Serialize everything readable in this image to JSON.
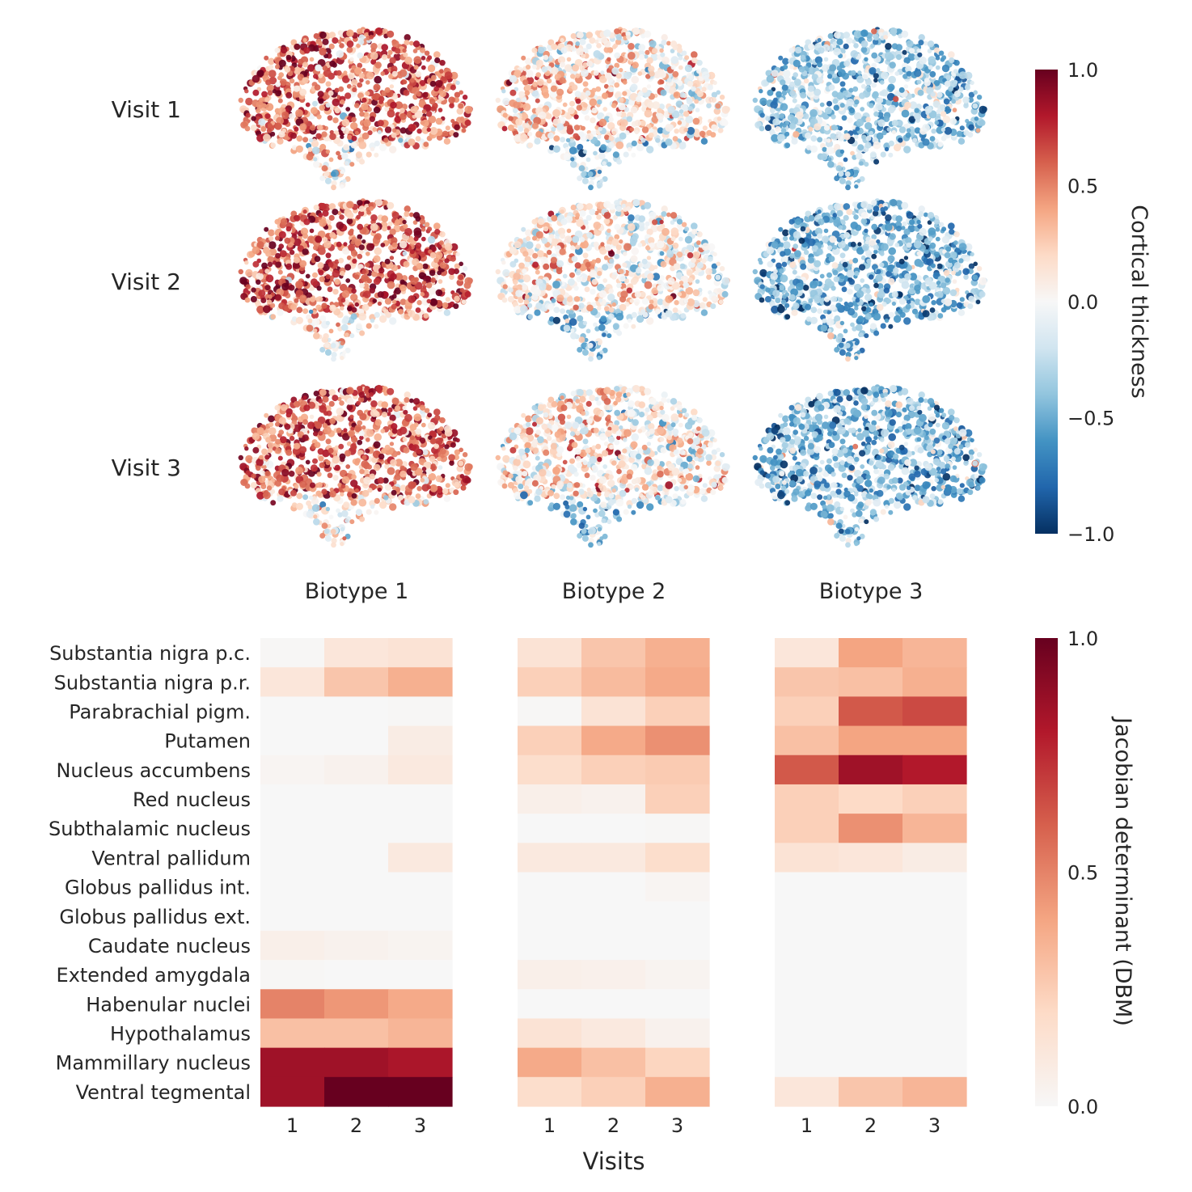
{
  "chart_data": [
    {
      "type": "scatter",
      "description_rows": [
        "Visit 1",
        "Visit 2",
        "Visit 3"
      ],
      "columns": [
        "Biotype 1",
        "Biotype 2",
        "Biotype 3"
      ],
      "colorbar": {
        "label": "Cortical thickness",
        "ticks": [
          "1.0",
          "0.5",
          "0.0",
          "−0.5",
          "−1.0"
        ],
        "range": [
          -1.0,
          1.0
        ],
        "colormap": "RdBu_r"
      },
      "panels": [
        {
          "visit": "Visit 1",
          "biotype": "Biotype 1",
          "mean_value": 0.55
        },
        {
          "visit": "Visit 1",
          "biotype": "Biotype 2",
          "mean_value": 0.2
        },
        {
          "visit": "Visit 1",
          "biotype": "Biotype 3",
          "mean_value": -0.35
        },
        {
          "visit": "Visit 2",
          "biotype": "Biotype 1",
          "mean_value": 0.6
        },
        {
          "visit": "Visit 2",
          "biotype": "Biotype 2",
          "mean_value": 0.12
        },
        {
          "visit": "Visit 2",
          "biotype": "Biotype 3",
          "mean_value": -0.45
        },
        {
          "visit": "Visit 3",
          "biotype": "Biotype 1",
          "mean_value": 0.55
        },
        {
          "visit": "Visit 3",
          "biotype": "Biotype 2",
          "mean_value": 0.15
        },
        {
          "visit": "Visit 3",
          "biotype": "Biotype 3",
          "mean_value": -0.45
        }
      ]
    },
    {
      "type": "heatmap",
      "rows": [
        "Substantia nigra p.c.",
        "Substantia nigra p.r.",
        "Parabrachial pigm.",
        "Putamen",
        "Nucleus accumbens",
        "Red nucleus",
        "Subthalamic nucleus",
        "Ventral pallidum",
        "Globus pallidus int.",
        "Globus pallidus ext.",
        "Caudate nucleus",
        "Extended amygdala",
        "Habenular nuclei",
        "Hypothalamus",
        "Mammillary nucleus",
        "Ventral tegmental"
      ],
      "x_ticks": [
        "1",
        "2",
        "3"
      ],
      "xlabel": "Visits",
      "groups": [
        {
          "name": "Biotype 1",
          "values": [
            [
              0.01,
              0.12,
              0.14
            ],
            [
              0.12,
              0.28,
              0.36
            ],
            [
              0.0,
              0.0,
              0.01
            ],
            [
              0.0,
              0.0,
              0.08
            ],
            [
              0.02,
              0.04,
              0.1
            ],
            [
              0.0,
              0.0,
              0.0
            ],
            [
              0.0,
              0.0,
              0.0
            ],
            [
              0.0,
              0.0,
              0.1
            ],
            [
              0.0,
              0.0,
              0.0
            ],
            [
              0.0,
              0.0,
              0.0
            ],
            [
              0.06,
              0.04,
              0.03
            ],
            [
              0.01,
              0.0,
              0.0
            ],
            [
              0.5,
              0.44,
              0.38
            ],
            [
              0.3,
              0.3,
              0.34
            ],
            [
              0.85,
              0.85,
              0.82
            ],
            [
              0.85,
              1.0,
              1.0
            ]
          ]
        },
        {
          "name": "Biotype 2",
          "values": [
            [
              0.14,
              0.28,
              0.36
            ],
            [
              0.24,
              0.32,
              0.38
            ],
            [
              0.01,
              0.14,
              0.24
            ],
            [
              0.24,
              0.38,
              0.46
            ],
            [
              0.18,
              0.24,
              0.26
            ],
            [
              0.06,
              0.04,
              0.24
            ],
            [
              0.0,
              0.0,
              0.01
            ],
            [
              0.1,
              0.1,
              0.18
            ],
            [
              0.0,
              0.0,
              0.02
            ],
            [
              0.0,
              0.0,
              0.0
            ],
            [
              0.0,
              0.0,
              0.0
            ],
            [
              0.06,
              0.05,
              0.03
            ],
            [
              0.0,
              0.0,
              0.0
            ],
            [
              0.14,
              0.1,
              0.04
            ],
            [
              0.38,
              0.3,
              0.22
            ],
            [
              0.18,
              0.24,
              0.36
            ]
          ]
        },
        {
          "name": "Biotype 3",
          "values": [
            [
              0.12,
              0.4,
              0.34
            ],
            [
              0.28,
              0.3,
              0.36
            ],
            [
              0.24,
              0.62,
              0.66
            ],
            [
              0.3,
              0.4,
              0.4
            ],
            [
              0.62,
              0.85,
              0.8
            ],
            [
              0.24,
              0.2,
              0.24
            ],
            [
              0.24,
              0.46,
              0.34
            ],
            [
              0.14,
              0.12,
              0.08
            ],
            [
              0.0,
              0.0,
              0.0
            ],
            [
              0.0,
              0.0,
              0.0
            ],
            [
              0.0,
              0.0,
              0.0
            ],
            [
              0.0,
              0.0,
              0.0
            ],
            [
              0.0,
              0.0,
              0.0
            ],
            [
              0.0,
              0.0,
              0.0
            ],
            [
              0.0,
              0.0,
              0.0
            ],
            [
              0.12,
              0.28,
              0.34
            ]
          ]
        }
      ],
      "colorbar": {
        "label": "Jacobian determinant (DBM)",
        "ticks": [
          "1.0",
          "0.5",
          "0.0"
        ],
        "range": [
          0.0,
          1.0
        ],
        "colormap": "RdBu_r (upper half)"
      }
    }
  ]
}
